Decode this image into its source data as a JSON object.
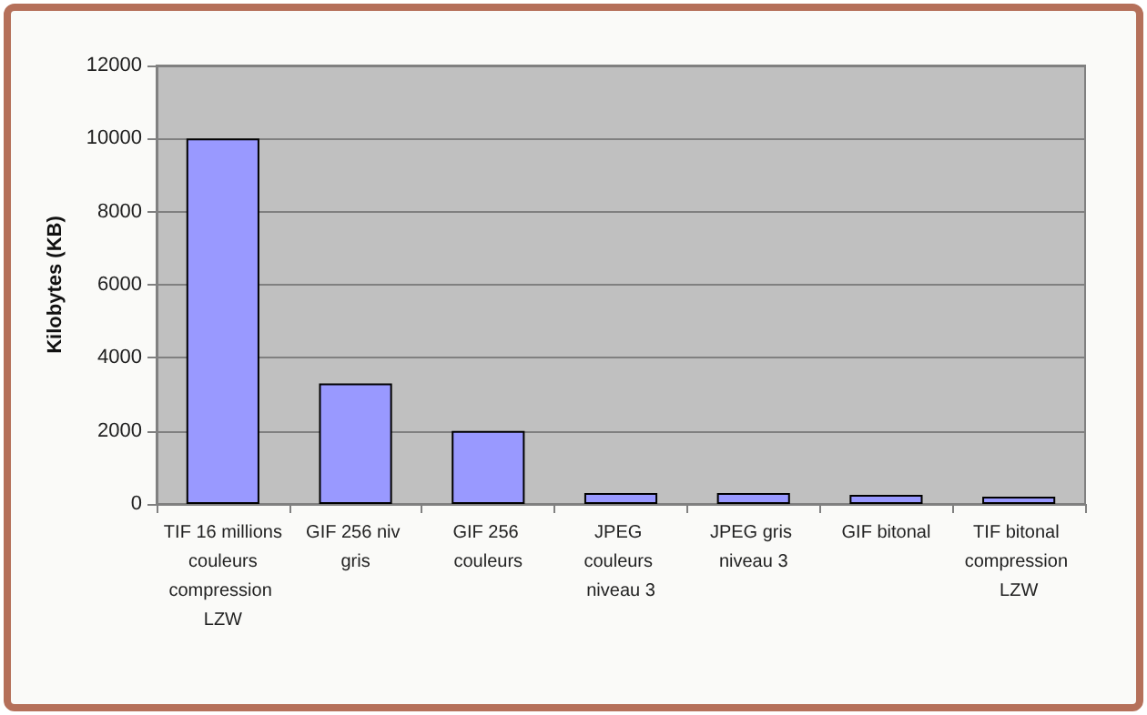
{
  "chart_data": {
    "type": "bar",
    "ylabel": "Kilobytes (KB)",
    "categories": [
      "TIF 16 millions couleurs compression LZW",
      "GIF 256 niv gris",
      "GIF 256 couleurs",
      "JPEG couleurs niveau 3",
      "JPEG gris niveau 3",
      "GIF bitonal",
      "TIF bitonal compression LZW"
    ],
    "values": [
      10000,
      3300,
      2000,
      300,
      300,
      250,
      200
    ],
    "color": "#9999ff",
    "ylim": [
      0,
      12000
    ],
    "yticks": [
      0,
      2000,
      4000,
      6000,
      8000,
      10000,
      12000
    ],
    "grid": "y"
  }
}
